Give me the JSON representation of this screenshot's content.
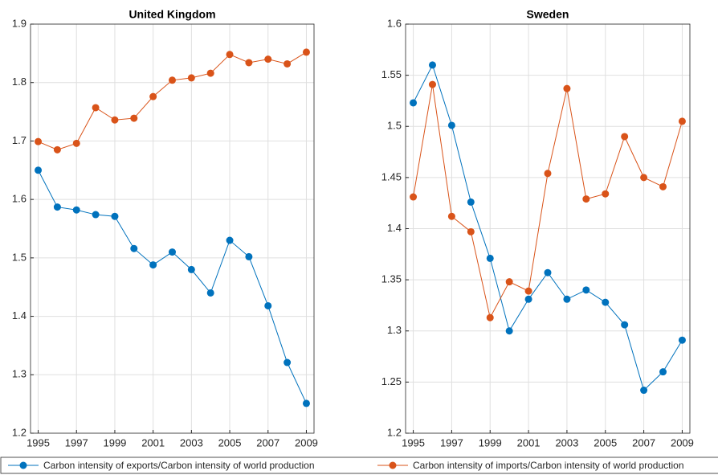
{
  "chart_data": [
    {
      "type": "line",
      "title": "United Kingdom",
      "x": [
        1995,
        1996,
        1997,
        1998,
        1999,
        2000,
        2001,
        2002,
        2003,
        2004,
        2005,
        2006,
        2007,
        2008,
        2009
      ],
      "xlim": [
        1994.6,
        2009.4
      ],
      "xticks": [
        1995,
        1997,
        1999,
        2001,
        2003,
        2005,
        2007,
        2009
      ],
      "ylim": [
        1.2,
        1.9
      ],
      "yticks": [
        1.2,
        1.3,
        1.4,
        1.5,
        1.6,
        1.7,
        1.8,
        1.9
      ],
      "grid": true,
      "series": [
        {
          "name": "Carbon intensity of exports/Carbon intensity of world production",
          "color": "#0072bd",
          "values": [
            1.65,
            1.587,
            1.582,
            1.574,
            1.571,
            1.516,
            1.488,
            1.51,
            1.48,
            1.44,
            1.53,
            1.502,
            1.418,
            1.321,
            1.251
          ]
        },
        {
          "name": "Carbon intensity of imports/Carbon intensity of world production",
          "color": "#d95319",
          "values": [
            1.699,
            1.685,
            1.696,
            1.757,
            1.736,
            1.739,
            1.776,
            1.804,
            1.808,
            1.816,
            1.848,
            1.834,
            1.84,
            1.832,
            1.852
          ]
        }
      ]
    },
    {
      "type": "line",
      "title": "Sweden",
      "x": [
        1995,
        1996,
        1997,
        1998,
        1999,
        2000,
        2001,
        2002,
        2003,
        2004,
        2005,
        2006,
        2007,
        2008,
        2009
      ],
      "xlim": [
        1994.6,
        2009.4
      ],
      "xticks": [
        1995,
        1997,
        1999,
        2001,
        2003,
        2005,
        2007,
        2009
      ],
      "ylim": [
        1.2,
        1.6
      ],
      "yticks": [
        1.2,
        1.25,
        1.3,
        1.35,
        1.4,
        1.45,
        1.5,
        1.55,
        1.6
      ],
      "grid": true,
      "series": [
        {
          "name": "Carbon intensity of exports/Carbon intensity of world production",
          "color": "#0072bd",
          "values": [
            1.523,
            1.56,
            1.501,
            1.426,
            1.371,
            1.3,
            1.331,
            1.357,
            1.331,
            1.34,
            1.328,
            1.306,
            1.242,
            1.26,
            1.291
          ]
        },
        {
          "name": "Carbon intensity of imports/Carbon intensity of world production",
          "color": "#d95319",
          "values": [
            1.431,
            1.541,
            1.412,
            1.397,
            1.313,
            1.348,
            1.339,
            1.454,
            1.537,
            1.429,
            1.434,
            1.49,
            1.45,
            1.441,
            1.505
          ]
        }
      ]
    }
  ]
}
